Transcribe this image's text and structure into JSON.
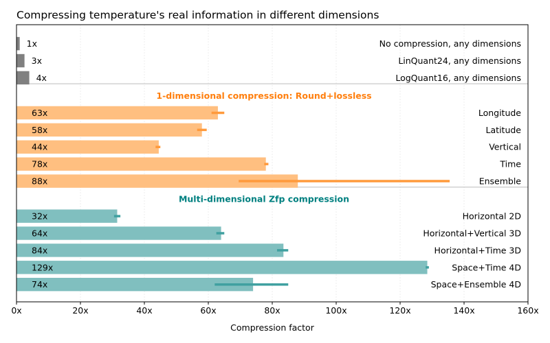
{
  "chart_data": {
    "type": "bar",
    "orientation": "horizontal",
    "title": "Compressing temperature's real information in different dimensions",
    "xlabel": "Compression factor",
    "xlim": [
      0,
      160
    ],
    "xticks": [
      {
        "value": 0,
        "label": "0x"
      },
      {
        "value": 20,
        "label": "20x"
      },
      {
        "value": 40,
        "label": "40x"
      },
      {
        "value": 60,
        "label": "60x"
      },
      {
        "value": 80,
        "label": "80x"
      },
      {
        "value": 100,
        "label": "100x"
      },
      {
        "value": 120,
        "label": "120x"
      },
      {
        "value": 140,
        "label": "140x"
      },
      {
        "value": 160,
        "label": "160x"
      }
    ],
    "grid": "vertical",
    "groups": [
      {
        "heading": "",
        "color": "#808080",
        "bars": [
          {
            "value": 1,
            "value_label": "1x",
            "name": "No compression, any dimensions"
          },
          {
            "value": 2.5,
            "value_label": "3x",
            "name": "LinQuant24, any dimensions"
          },
          {
            "value": 4,
            "value_label": "4x",
            "name": "LogQuant16, any dimensions"
          }
        ]
      },
      {
        "heading": "1-dimensional compression: Round+lossless",
        "color": "#ffbf80",
        "heading_color": "#ff7f0e",
        "error_color": "#ff9a3c",
        "bars": [
          {
            "value": 63,
            "value_label": "63x",
            "name": "Longitude",
            "range": [
              61,
              65
            ]
          },
          {
            "value": 58,
            "value_label": "58x",
            "name": "Latitude",
            "range": [
              56.5,
              59.5
            ]
          },
          {
            "value": 44.5,
            "value_label": "44x",
            "name": "Vertical",
            "range": [
              43.5,
              45
            ]
          },
          {
            "value": 78,
            "value_label": "78x",
            "name": "Time",
            "range": [
              77.5,
              78.8
            ]
          },
          {
            "value": 88,
            "value_label": "88x",
            "name": "Ensemble",
            "range": [
              69.5,
              135.5
            ]
          }
        ]
      },
      {
        "heading": "Multi-dimensional Zfp compression",
        "color": "#80bfbf",
        "heading_color": "#008080",
        "error_color": "#40a0a0",
        "bars": [
          {
            "value": 31.5,
            "value_label": "32x",
            "name": "Horizontal 2D",
            "range": [
              30.5,
              32.5
            ]
          },
          {
            "value": 64,
            "value_label": "64x",
            "name": "Horizontal+Vertical 3D",
            "range": [
              62.5,
              65
            ]
          },
          {
            "value": 83.5,
            "value_label": "84x",
            "name": "Horizontal+Time 3D",
            "range": [
              81.5,
              85
            ]
          },
          {
            "value": 128.5,
            "value_label": "129x",
            "name": "Space+Time 4D",
            "range": [
              128,
              129
            ]
          },
          {
            "value": 74,
            "value_label": "74x",
            "name": "Space+Ensemble 4D",
            "range": [
              62,
              85
            ]
          }
        ]
      }
    ]
  }
}
